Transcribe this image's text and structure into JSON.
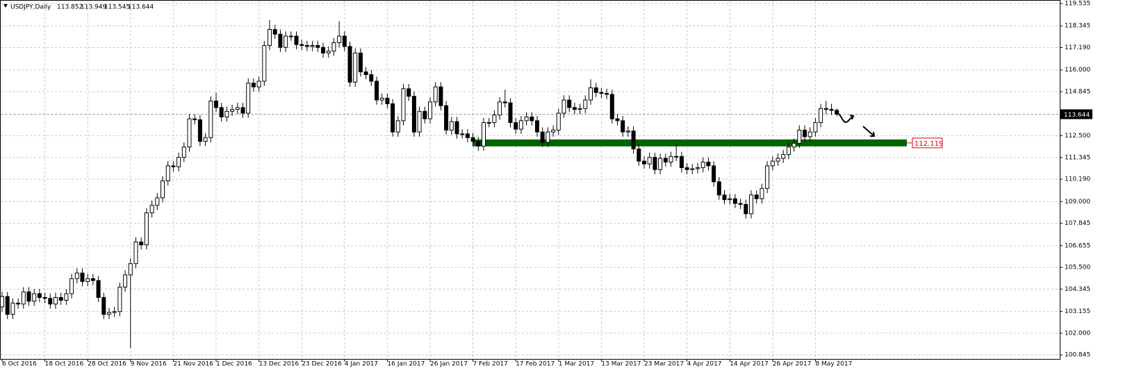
{
  "chart_data": {
    "type": "candlestick",
    "title": "USDJPY,Daily",
    "quote": [
      113.852,
      113.949,
      113.545,
      113.644
    ],
    "level": 112.119,
    "categories": [
      "6 Oct 2016",
      null,
      null,
      null,
      null,
      null,
      null,
      null,
      "18 Oct 2016",
      null,
      null,
      null,
      null,
      null,
      null,
      null,
      "28 Oct 2016",
      null,
      null,
      null,
      null,
      null,
      null,
      null,
      "9 Nov 2016",
      null,
      null,
      null,
      null,
      null,
      null,
      null,
      "21 Nov 2016",
      null,
      null,
      null,
      null,
      null,
      null,
      null,
      "1 Dec 2016",
      null,
      null,
      null,
      null,
      null,
      null,
      null,
      "13 Dec 2016",
      null,
      null,
      null,
      null,
      null,
      null,
      null,
      "23 Dec 2016",
      null,
      null,
      null,
      null,
      null,
      null,
      null,
      "4 Jan 2017",
      null,
      null,
      null,
      null,
      null,
      null,
      null,
      "16 Jan 2017",
      null,
      null,
      null,
      null,
      null,
      null,
      null,
      "26 Jan 2017",
      null,
      null,
      null,
      null,
      null,
      null,
      null,
      "7 Feb 2017",
      null,
      null,
      null,
      null,
      null,
      null,
      null,
      "17 Feb 2017",
      null,
      null,
      null,
      null,
      null,
      null,
      null,
      "1 Mar 2017",
      null,
      null,
      null,
      null,
      null,
      null,
      null,
      "13 Mar 2017",
      null,
      null,
      null,
      null,
      null,
      null,
      null,
      "23 Mar 2017",
      null,
      null,
      null,
      null,
      null,
      null,
      null,
      "4 Apr 2017",
      null,
      null,
      null,
      null,
      null,
      null,
      null,
      "14 Apr 2017",
      null,
      null,
      null,
      null,
      null,
      null,
      null,
      "26 Apr 2017",
      null,
      null,
      null,
      null,
      null,
      null,
      null,
      "8 May 2017",
      null,
      null,
      null,
      null
    ],
    "open": [
      103.4,
      103.95,
      103.0,
      103.6,
      103.55,
      104.2,
      103.7,
      104.1,
      103.9,
      103.85,
      103.55,
      103.9,
      103.75,
      104.1,
      104.9,
      105.2,
      104.75,
      104.9,
      104.8,
      103.9,
      103.0,
      103.1,
      103.15,
      104.45,
      105.1,
      105.7,
      106.85,
      106.7,
      108.4,
      108.8,
      109.2,
      110.1,
      110.9,
      110.85,
      111.35,
      111.9,
      113.4,
      113.35,
      112.2,
      112.4,
      114.35,
      114.0,
      113.5,
      113.8,
      113.9,
      114.0,
      113.7,
      115.3,
      115.1,
      115.4,
      117.3,
      118.15,
      117.9,
      117.2,
      117.8,
      117.8,
      117.35,
      117.3,
      117.25,
      117.3,
      117.2,
      116.9,
      117.0,
      117.45,
      117.8,
      117.25,
      115.35,
      116.9,
      115.9,
      115.75,
      115.4,
      114.4,
      114.5,
      114.2,
      112.7,
      113.3,
      115.0,
      114.6,
      112.7,
      113.8,
      113.4,
      114.3,
      115.1,
      114.1,
      112.8,
      113.25,
      112.6,
      112.6,
      112.4,
      112.2,
      111.95,
      113.2,
      113.2,
      113.6,
      114.3,
      114.25,
      113.2,
      112.85,
      113.3,
      113.5,
      113.3,
      112.7,
      112.15,
      112.7,
      112.8,
      113.7,
      114.4,
      114.0,
      113.9,
      113.95,
      114.4,
      115.05,
      114.8,
      114.75,
      114.7,
      113.4,
      113.3,
      112.7,
      112.75,
      111.8,
      111.15,
      111.0,
      111.35,
      110.7,
      111.3,
      111.1,
      111.4,
      111.4,
      110.8,
      110.7,
      110.75,
      110.8,
      111.1,
      110.9,
      110.05,
      109.35,
      109.1,
      109.15,
      108.9,
      108.85,
      108.35,
      109.35,
      109.15,
      109.7,
      110.9,
      111.15,
      111.3,
      111.5,
      111.9,
      112.1,
      112.8,
      112.45,
      112.7,
      113.2,
      113.95,
      113.9,
      113.852
    ],
    "high": [
      104.2,
      104.2,
      103.85,
      103.85,
      104.45,
      104.45,
      104.35,
      104.35,
      104.15,
      104.1,
      104.15,
      104.15,
      104.35,
      105.15,
      105.45,
      105.45,
      105.15,
      105.15,
      105.05,
      104.15,
      103.35,
      103.4,
      104.7,
      105.35,
      106.0,
      107.1,
      107.1,
      108.65,
      109.05,
      109.45,
      110.35,
      111.15,
      111.15,
      111.6,
      112.15,
      113.65,
      113.65,
      113.6,
      112.65,
      114.6,
      114.8,
      114.25,
      114.05,
      114.15,
      114.25,
      114.25,
      115.55,
      115.55,
      115.65,
      117.55,
      118.65,
      118.4,
      118.15,
      118.05,
      118.05,
      118.05,
      117.6,
      117.55,
      117.55,
      117.55,
      117.45,
      117.25,
      117.7,
      118.6,
      118.05,
      117.5,
      117.15,
      117.15,
      116.15,
      116.0,
      115.65,
      114.75,
      114.75,
      114.45,
      113.55,
      115.25,
      115.25,
      114.85,
      114.05,
      114.05,
      114.55,
      115.35,
      115.35,
      114.35,
      113.5,
      113.5,
      112.85,
      112.85,
      112.65,
      112.45,
      113.45,
      113.45,
      113.85,
      114.55,
      114.95,
      114.5,
      113.45,
      113.55,
      113.75,
      113.75,
      113.55,
      112.95,
      112.95,
      113.05,
      113.95,
      114.65,
      114.65,
      114.25,
      114.2,
      114.65,
      115.5,
      115.3,
      115.05,
      115.0,
      114.95,
      113.65,
      113.55,
      113.0,
      113.0,
      112.05,
      111.4,
      111.6,
      111.6,
      111.55,
      111.55,
      111.65,
      112.1,
      111.65,
      111.05,
      111.0,
      111.05,
      111.35,
      111.35,
      111.15,
      110.3,
      109.6,
      109.4,
      109.4,
      109.15,
      109.1,
      109.6,
      109.6,
      109.95,
      111.15,
      111.4,
      111.55,
      111.75,
      112.15,
      112.35,
      113.05,
      113.05,
      112.95,
      113.45,
      114.2,
      114.35,
      114.2,
      113.949
    ],
    "low": [
      103.15,
      102.75,
      102.75,
      103.3,
      103.3,
      103.45,
      103.45,
      103.65,
      103.6,
      103.3,
      103.3,
      103.5,
      103.5,
      103.85,
      104.65,
      104.5,
      104.5,
      104.55,
      103.65,
      102.75,
      102.75,
      102.85,
      102.9,
      104.2,
      101.2,
      105.45,
      106.45,
      106.45,
      108.15,
      108.55,
      108.95,
      109.85,
      110.6,
      110.6,
      111.1,
      111.65,
      113.1,
      111.95,
      111.95,
      112.15,
      113.75,
      113.25,
      113.25,
      113.55,
      113.65,
      113.45,
      113.45,
      114.85,
      114.85,
      115.15,
      117.05,
      117.65,
      116.95,
      116.95,
      117.55,
      117.1,
      117.05,
      117.0,
      117.0,
      116.95,
      116.65,
      116.65,
      116.75,
      117.2,
      117.0,
      115.1,
      115.1,
      115.65,
      115.5,
      115.15,
      114.15,
      114.15,
      113.95,
      112.45,
      112.45,
      113.05,
      114.35,
      112.45,
      112.45,
      113.15,
      113.15,
      114.05,
      113.85,
      112.55,
      112.55,
      112.35,
      112.35,
      112.15,
      111.95,
      111.7,
      111.7,
      112.95,
      112.95,
      113.35,
      114.0,
      112.95,
      112.6,
      112.6,
      113.05,
      113.05,
      112.45,
      111.9,
      111.9,
      112.45,
      112.55,
      113.45,
      113.75,
      113.65,
      113.65,
      113.7,
      114.15,
      114.55,
      114.5,
      114.45,
      113.15,
      113.05,
      112.45,
      112.45,
      111.55,
      110.9,
      110.75,
      110.75,
      110.45,
      110.45,
      110.85,
      110.85,
      111.15,
      110.55,
      110.45,
      110.45,
      110.5,
      110.55,
      110.65,
      109.8,
      109.1,
      108.85,
      108.85,
      108.65,
      108.6,
      108.1,
      108.1,
      108.9,
      108.9,
      109.45,
      110.65,
      110.9,
      111.05,
      111.25,
      111.65,
      111.85,
      112.2,
      112.2,
      112.45,
      112.95,
      113.65,
      113.6,
      113.545
    ],
    "close": [
      103.95,
      103.0,
      103.6,
      103.55,
      104.2,
      103.7,
      104.1,
      103.9,
      103.85,
      103.55,
      103.9,
      103.75,
      104.1,
      104.9,
      105.2,
      104.75,
      104.9,
      104.8,
      103.9,
      103.0,
      103.1,
      103.15,
      104.45,
      105.1,
      105.7,
      106.85,
      106.7,
      108.4,
      108.8,
      109.2,
      110.1,
      110.9,
      110.85,
      111.35,
      111.9,
      113.4,
      113.35,
      112.2,
      112.4,
      114.35,
      114.0,
      113.5,
      113.8,
      113.9,
      114.0,
      113.7,
      115.3,
      115.1,
      115.4,
      117.3,
      118.15,
      117.9,
      117.2,
      117.8,
      117.8,
      117.35,
      117.3,
      117.25,
      117.3,
      117.2,
      116.9,
      117.0,
      117.45,
      117.8,
      117.25,
      115.35,
      116.9,
      115.9,
      115.75,
      115.4,
      114.4,
      114.5,
      114.2,
      112.7,
      113.3,
      115.0,
      114.6,
      112.7,
      113.8,
      113.4,
      114.3,
      115.1,
      114.1,
      112.8,
      113.25,
      112.6,
      112.6,
      112.4,
      112.2,
      111.95,
      113.2,
      113.2,
      113.6,
      114.3,
      114.25,
      113.2,
      112.85,
      113.3,
      113.5,
      113.3,
      112.7,
      112.15,
      112.7,
      112.8,
      113.7,
      114.4,
      114.0,
      113.9,
      113.95,
      114.4,
      115.05,
      114.8,
      114.75,
      114.7,
      113.4,
      113.3,
      112.7,
      112.75,
      111.8,
      111.15,
      111.0,
      111.35,
      110.7,
      111.3,
      111.1,
      111.4,
      111.4,
      110.8,
      110.7,
      110.75,
      110.8,
      111.1,
      110.9,
      110.05,
      109.35,
      109.1,
      109.15,
      108.9,
      108.85,
      108.35,
      109.35,
      109.15,
      109.7,
      110.9,
      111.15,
      111.3,
      111.5,
      111.9,
      112.1,
      112.8,
      112.45,
      112.7,
      113.2,
      113.95,
      113.9,
      113.85,
      113.644
    ],
    "ylim": [
      100.63,
      119.72
    ],
    "yticks": [
      119.535,
      118.345,
      {
        "value": 117.19,
        "label": "117.190"
      },
      {
        "value": 116,
        "label": "116.000"
      },
      114.845,
      {
        "value": 112.5,
        "label": "112.500"
      },
      111.345,
      {
        "value": 110.19,
        "label": "110.190"
      },
      {
        "value": 109,
        "label": "109.000"
      },
      107.845,
      106.655,
      {
        "value": 105.5,
        "label": "105.500"
      },
      104.345,
      103.155,
      {
        "value": 102,
        "label": "102.000"
      },
      100.845
    ],
    "grid": true,
    "level_color": "#006400",
    "bull_color": "#ffffff",
    "bear_color": "#000000"
  }
}
